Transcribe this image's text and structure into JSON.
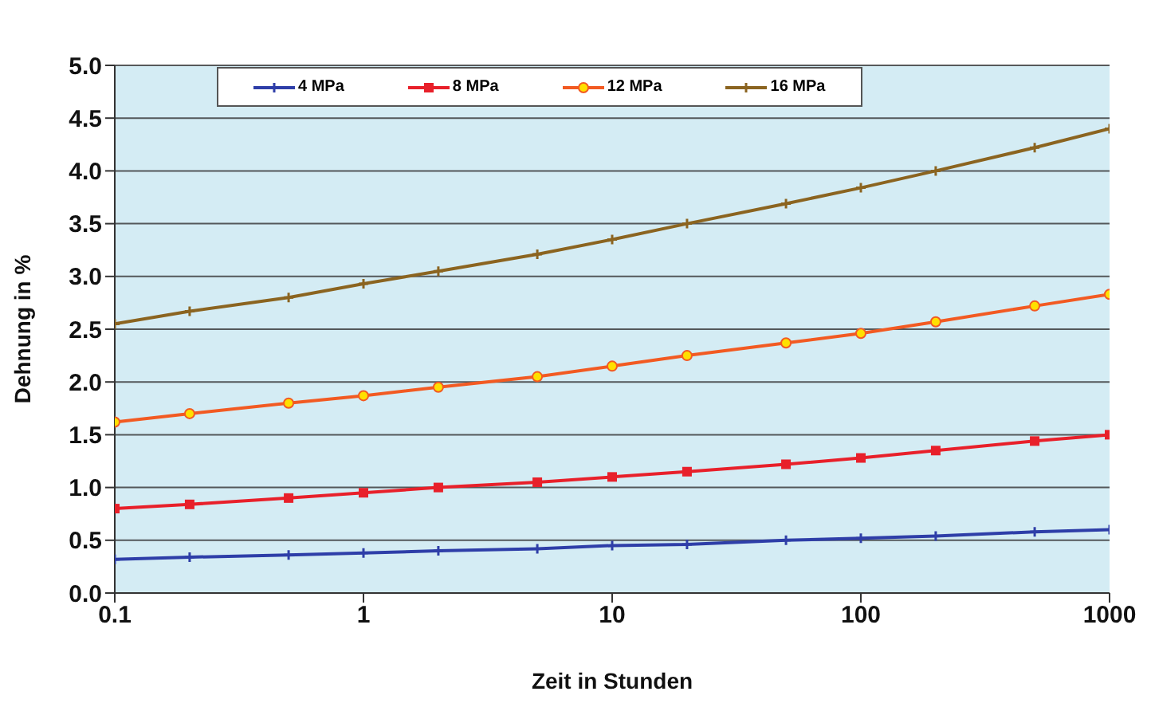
{
  "chart_data": {
    "type": "line",
    "xlabel": "Zeit in Stunden",
    "ylabel": "Dehnung in %",
    "x": [
      0.1,
      0.2,
      0.5,
      1,
      2,
      5,
      10,
      20,
      50,
      100,
      200,
      500,
      1000
    ],
    "series": [
      {
        "name": "4 MPa",
        "color": "#2e3ea8",
        "marker": "cross",
        "values": [
          0.32,
          0.34,
          0.36,
          0.38,
          0.4,
          0.42,
          0.45,
          0.46,
          0.5,
          0.52,
          0.54,
          0.58,
          0.6
        ]
      },
      {
        "name": "8 MPa",
        "color": "#e8202a",
        "marker": "square",
        "values": [
          0.8,
          0.84,
          0.9,
          0.95,
          1.0,
          1.05,
          1.1,
          1.15,
          1.22,
          1.28,
          1.35,
          1.44,
          1.5
        ]
      },
      {
        "name": "12 MPa",
        "color": "#f25a22",
        "marker": "circle",
        "values": [
          1.62,
          1.7,
          1.8,
          1.87,
          1.95,
          2.05,
          2.15,
          2.25,
          2.37,
          2.46,
          2.57,
          2.72,
          2.83
        ]
      },
      {
        "name": "16 MPa",
        "color": "#8b6420",
        "marker": "cross",
        "values": [
          2.55,
          2.67,
          2.8,
          2.93,
          3.05,
          3.21,
          3.35,
          3.5,
          3.69,
          3.84,
          4.0,
          4.22,
          4.4
        ]
      }
    ],
    "log": "x",
    "xlim": [
      0.1,
      1000
    ],
    "xticks": [
      0.1,
      1,
      10,
      100,
      1000
    ],
    "ylim": [
      0,
      5
    ],
    "yticks": [
      {
        "value": 0,
        "label": "0.0"
      },
      0.5,
      {
        "value": 1,
        "label": "1.0"
      },
      1.5,
      {
        "value": 2,
        "label": "2.0"
      },
      2.5,
      {
        "value": 3,
        "label": "3.0"
      },
      3.5,
      {
        "value": 4,
        "label": "4.0"
      },
      4.5,
      {
        "value": 5,
        "label": "5.0"
      }
    ],
    "grid": "y",
    "legend": "top left",
    "line_style": "solid"
  }
}
